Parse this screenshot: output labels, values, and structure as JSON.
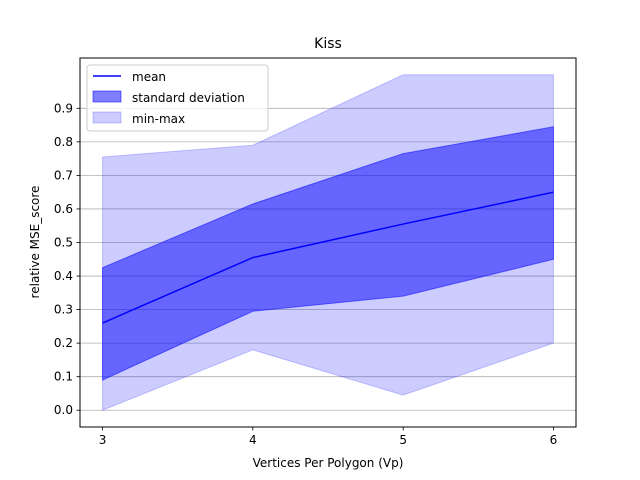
{
  "chart_data": {
    "type": "area",
    "title": "Kiss",
    "xlabel": "Vertices Per Polygon (Vp)",
    "ylabel": "relative MSE_score",
    "x": [
      3,
      4,
      5,
      6
    ],
    "x_ticks": [
      "3",
      "4",
      "5",
      "6"
    ],
    "y_ticks": [
      "0.0",
      "0.1",
      "0.2",
      "0.3",
      "0.4",
      "0.5",
      "0.6",
      "0.7",
      "0.8",
      "0.9"
    ],
    "xlim": [
      2.85,
      6.15
    ],
    "ylim": [
      -0.05,
      1.05
    ],
    "grid": "horizontal",
    "legend_position": "top-left",
    "series": [
      {
        "name": "mean",
        "kind": "line",
        "color": "#0000ff",
        "values": [
          0.26,
          0.455,
          0.555,
          0.65
        ]
      },
      {
        "name": "standard deviation",
        "kind": "band",
        "color": "#0000ff",
        "opacity": 0.5,
        "lower": [
          0.09,
          0.295,
          0.34,
          0.45
        ],
        "upper": [
          0.425,
          0.615,
          0.765,
          0.845
        ]
      },
      {
        "name": "min-max",
        "kind": "band",
        "color": "#0000ff",
        "opacity": 0.2,
        "lower": [
          0.0,
          0.18,
          0.045,
          0.2
        ],
        "upper": [
          0.755,
          0.79,
          1.0,
          1.0
        ]
      }
    ]
  }
}
